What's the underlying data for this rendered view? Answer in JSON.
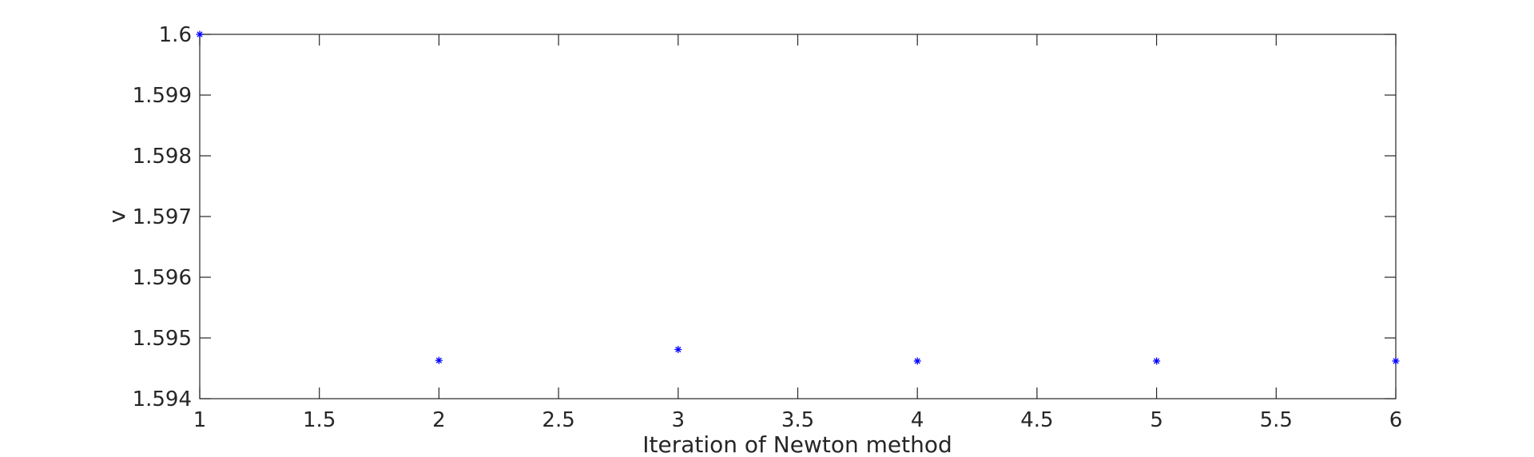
{
  "chart_data": {
    "type": "scatter",
    "title": "",
    "xlabel": "Iteration of Newton method",
    "ylabel": "v",
    "xlim": [
      1,
      6
    ],
    "ylim": [
      1.594,
      1.6
    ],
    "xticks": [
      "1",
      "1.5",
      "2",
      "2.5",
      "3",
      "3.5",
      "4",
      "4.5",
      "5",
      "5.5",
      "6"
    ],
    "xtick_values": [
      1,
      1.5,
      2,
      2.5,
      3,
      3.5,
      4,
      4.5,
      5,
      5.5,
      6
    ],
    "yticks": [
      "1.594",
      "1.595",
      "1.596",
      "1.597",
      "1.598",
      "1.599",
      "1.6"
    ],
    "ytick_values": [
      1.594,
      1.595,
      1.596,
      1.597,
      1.598,
      1.599,
      1.6
    ],
    "grid": false,
    "marker": "*",
    "marker_color": "#0000ff",
    "series": [
      {
        "x": [
          1,
          2,
          3,
          4,
          5,
          6
        ],
        "y": [
          1.6,
          1.59463,
          1.59481,
          1.59462,
          1.59462,
          1.59462
        ]
      }
    ]
  }
}
